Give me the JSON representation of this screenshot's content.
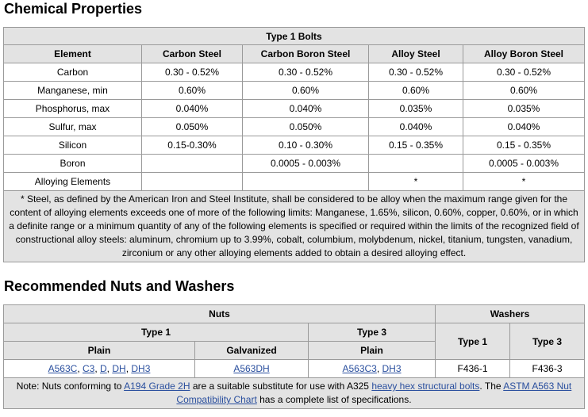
{
  "chemical": {
    "title": "Chemical Properties",
    "table_caption": "Type 1 Bolts",
    "headers": [
      "Element",
      "Carbon Steel",
      "Carbon Boron Steel",
      "Alloy Steel",
      "Alloy Boron Steel"
    ],
    "rows": [
      [
        "Carbon",
        "0.30 - 0.52%",
        "0.30 - 0.52%",
        "0.30 - 0.52%",
        "0.30 - 0.52%"
      ],
      [
        "Manganese, min",
        "0.60%",
        "0.60%",
        "0.60%",
        "0.60%"
      ],
      [
        "Phosphorus, max",
        "0.040%",
        "0.040%",
        "0.035%",
        "0.035%"
      ],
      [
        "Sulfur, max",
        "0.050%",
        "0.050%",
        "0.040%",
        "0.040%"
      ],
      [
        "Silicon",
        "0.15-0.30%",
        "0.10 - 0.30%",
        "0.15 - 0.35%",
        "0.15 - 0.35%"
      ],
      [
        "Boron",
        "",
        "0.0005 - 0.003%",
        "",
        "0.0005 - 0.003%"
      ],
      [
        "Alloying Elements",
        "",
        "",
        "*",
        "*"
      ]
    ],
    "footnote": "* Steel, as defined by the American Iron and Steel Institute, shall be considered to be alloy when the maximum range given for the content of alloying elements exceeds one of more of the following limits: Manganese, 1.65%, silicon, 0.60%, copper, 0.60%, or in which a definite range or a minimum quantity of any of the following elements is specified or required within the limits of the recognized field of constructional alloy steels: aluminum, chromium up to 3.99%, cobalt, columbium, molybdenum, nickel, titanium, tungsten, vanadium, zirconium or any other alloying elements added to obtain a desired alloying effect."
  },
  "nuts_washers": {
    "title": "Recommended Nuts and Washers",
    "group_nuts": "Nuts",
    "group_washers": "Washers",
    "nuts_type1": "Type 1",
    "nuts_type3": "Type 3",
    "washers_type1": "Type 1",
    "washers_type3": "Type 3",
    "plain1": "Plain",
    "galvanized": "Galvanized",
    "plain3": "Plain",
    "nuts_type1_plain_links": [
      "A563C",
      "C3",
      "D",
      "DH",
      "DH3"
    ],
    "nuts_type1_galv_links": [
      "A563DH"
    ],
    "nuts_type3_plain_links": [
      "A563C3",
      "DH3"
    ],
    "sep": ", ",
    "washer1_value": "F436-1",
    "washer3_value": "F436-3",
    "note": {
      "part1": "Note: Nuts conforming to ",
      "link1": "A194 Grade 2H",
      "part2": " are a suitable substitute for use with A325 ",
      "link2": "heavy hex structural bolts",
      "part3": ". The ",
      "link3": "ASTM A563 Nut Compatibility Chart",
      "part4": " has a complete list of specifications."
    }
  }
}
